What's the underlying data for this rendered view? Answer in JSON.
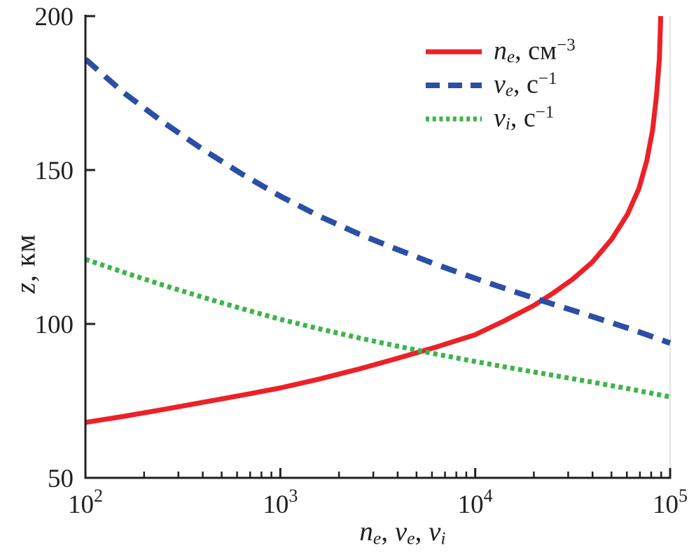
{
  "figure": {
    "background": "#ffffff",
    "axis_color": "#231f20",
    "faint_right_spine_color": "#d9d9d9"
  },
  "chart_data": {
    "type": "line",
    "title": "",
    "x_scale": "log",
    "xlim_log": [
      2,
      5
    ],
    "ylim": [
      50,
      200
    ],
    "grid": false,
    "legend_position": "top-right-inside",
    "xlabel_segments": [
      {
        "t": "n",
        "s": "iv"
      },
      {
        "t": "e",
        "s": "sub"
      },
      {
        "t": ", ",
        "s": "n"
      },
      {
        "t": "ν",
        "s": "iv"
      },
      {
        "t": "e",
        "s": "sub"
      },
      {
        "t": ", ",
        "s": "n"
      },
      {
        "t": "ν",
        "s": "iv"
      },
      {
        "t": "i",
        "s": "sub"
      }
    ],
    "ylabel_segments": [
      {
        "t": "z",
        "s": "iv"
      },
      {
        "t": ", км",
        "s": "n"
      }
    ],
    "x_ticks": [
      {
        "log": 2,
        "value": 100,
        "base": "10",
        "exp": "2"
      },
      {
        "log": 3,
        "value": 1000,
        "base": "10",
        "exp": "3"
      },
      {
        "log": 4,
        "value": 10000,
        "base": "10",
        "exp": "4"
      },
      {
        "log": 5,
        "value": 100000,
        "base": "10",
        "exp": "5"
      }
    ],
    "x_minor_tick_multiples": [
      2,
      3,
      4,
      5,
      6,
      7,
      8,
      9
    ],
    "y_ticks": [
      {
        "value": 200,
        "label": "200"
      },
      {
        "value": 150,
        "label": "150"
      },
      {
        "value": 100,
        "label": "100"
      },
      {
        "value": 50,
        "label": "50"
      }
    ],
    "series": [
      {
        "id": "ne",
        "name": "n_e, см^-3",
        "color": "#ec2127",
        "dash": "solid",
        "points": [
          [
            100,
            68
          ],
          [
            158,
            70
          ],
          [
            251,
            72.2
          ],
          [
            398,
            74.5
          ],
          [
            631,
            76.8
          ],
          [
            1000,
            79.2
          ],
          [
            1585,
            82.1
          ],
          [
            2512,
            85.3
          ],
          [
            3981,
            88.8
          ],
          [
            6310,
            92.5
          ],
          [
            10000,
            96.5
          ],
          [
            14100,
            101
          ],
          [
            20000,
            106
          ],
          [
            25100,
            110
          ],
          [
            31600,
            114.5
          ],
          [
            39800,
            120
          ],
          [
            50100,
            127.5
          ],
          [
            60300,
            135.5
          ],
          [
            69200,
            144
          ],
          [
            75900,
            153
          ],
          [
            81300,
            163
          ],
          [
            85100,
            174
          ],
          [
            88100,
            186
          ],
          [
            89500,
            200
          ]
        ]
      },
      {
        "id": "nu-e",
        "name": "ν_e, с^-1",
        "color": "#2b4ea6",
        "dash": "dashed",
        "points": [
          [
            100,
            186
          ],
          [
            158,
            175
          ],
          [
            251,
            165.5
          ],
          [
            398,
            156.8
          ],
          [
            631,
            148.8
          ],
          [
            1000,
            141.5
          ],
          [
            1585,
            135
          ],
          [
            2512,
            129.3
          ],
          [
            3981,
            124.2
          ],
          [
            6310,
            119.3
          ],
          [
            10000,
            114.8
          ],
          [
            15850,
            110.5
          ],
          [
            25120,
            106.4
          ],
          [
            39810,
            102.4
          ],
          [
            63100,
            98.3
          ],
          [
            100000,
            93.8
          ]
        ]
      },
      {
        "id": "nu-i",
        "name": "ν_i, с^-1",
        "color": "#3fb44a",
        "dash": "dotted",
        "points": [
          [
            100,
            121
          ],
          [
            158,
            116.7
          ],
          [
            251,
            112.6
          ],
          [
            398,
            108.7
          ],
          [
            631,
            105
          ],
          [
            1000,
            101.5
          ],
          [
            1585,
            98.4
          ],
          [
            2512,
            95.5
          ],
          [
            3981,
            92.8
          ],
          [
            6310,
            90.2
          ],
          [
            10000,
            87.8
          ],
          [
            15850,
            85.5
          ],
          [
            25120,
            83.3
          ],
          [
            39810,
            81.1
          ],
          [
            63100,
            78.8
          ],
          [
            100000,
            76.3
          ]
        ]
      }
    ]
  },
  "legend": {
    "items": [
      {
        "series_id": "ne",
        "label_segments": [
          {
            "t": "n",
            "s": "iv"
          },
          {
            "t": "e",
            "s": "sub"
          },
          {
            "t": ", см",
            "s": "n"
          },
          {
            "t": "−3",
            "s": "sup"
          }
        ]
      },
      {
        "series_id": "nu-e",
        "label_segments": [
          {
            "t": "ν",
            "s": "iv"
          },
          {
            "t": "e",
            "s": "sub"
          },
          {
            "t": ", с",
            "s": "n"
          },
          {
            "t": "−1",
            "s": "sup"
          }
        ]
      },
      {
        "series_id": "nu-i",
        "label_segments": [
          {
            "t": "ν",
            "s": "iv"
          },
          {
            "t": "i",
            "s": "sub"
          },
          {
            "t": ", с",
            "s": "n"
          },
          {
            "t": "−1",
            "s": "sup"
          }
        ]
      }
    ]
  }
}
